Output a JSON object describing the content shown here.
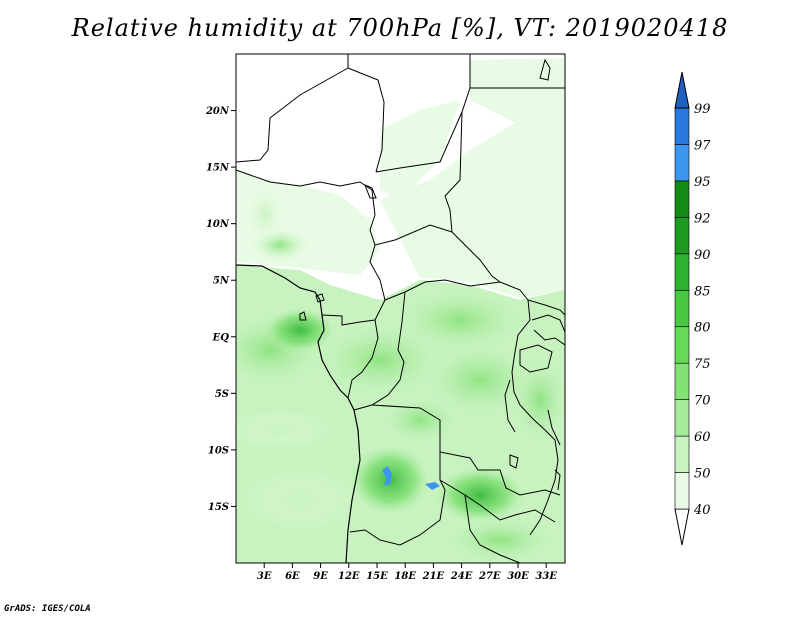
{
  "title": "Relative humidity at 700hPa [%], VT: 2019020418",
  "credit": "GrADS: IGES/COLA",
  "map": {
    "lon_range": [
      0,
      35
    ],
    "lat_range": [
      -20,
      25
    ],
    "lat_ticks": [
      {
        "value": 20,
        "label": "20N"
      },
      {
        "value": 15,
        "label": "15N"
      },
      {
        "value": 10,
        "label": "10N"
      },
      {
        "value": 5,
        "label": "5N"
      },
      {
        "value": 0,
        "label": "EQ"
      },
      {
        "value": -5,
        "label": "5S"
      },
      {
        "value": -10,
        "label": "10S"
      },
      {
        "value": -15,
        "label": "15S"
      }
    ],
    "lon_ticks": [
      {
        "value": 3,
        "label": "3E"
      },
      {
        "value": 6,
        "label": "6E"
      },
      {
        "value": 9,
        "label": "9E"
      },
      {
        "value": 12,
        "label": "12E"
      },
      {
        "value": 15,
        "label": "15E"
      },
      {
        "value": 18,
        "label": "18E"
      },
      {
        "value": 21,
        "label": "21E"
      },
      {
        "value": 24,
        "label": "24E"
      },
      {
        "value": 27,
        "label": "27E"
      },
      {
        "value": 30,
        "label": "30E"
      },
      {
        "value": 33,
        "label": "33E"
      }
    ]
  },
  "colorbar": {
    "levels": [
      {
        "label": "40",
        "color": "#ffffff"
      },
      {
        "label": "50",
        "color": "#e8fbe4"
      },
      {
        "label": "60",
        "color": "#c8f3c0"
      },
      {
        "label": "70",
        "color": "#a6eb9a"
      },
      {
        "label": "75",
        "color": "#84e176"
      },
      {
        "label": "80",
        "color": "#66d85a"
      },
      {
        "label": "85",
        "color": "#48c844"
      },
      {
        "label": "90",
        "color": "#2eb22f"
      },
      {
        "label": "92",
        "color": "#1f9a20"
      },
      {
        "label": "95",
        "color": "#148a14"
      },
      {
        "label": "97",
        "color": "#3c96f0"
      },
      {
        "label": "99",
        "color": "#2a78dc"
      }
    ],
    "top_color": "#1e5fc0"
  }
}
